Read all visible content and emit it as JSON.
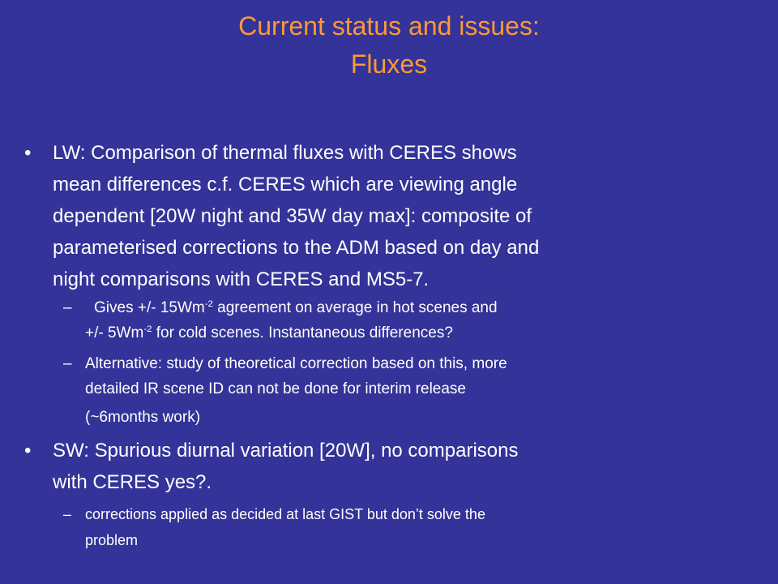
{
  "title": [
    "Current status and issues:",
    "Fluxes"
  ],
  "bullets": [
    {
      "marker": "•",
      "lines": [
        "LW: Comparison of thermal fluxes with CERES shows",
        "mean differences c.f. CERES which are viewing angle",
        "dependent [20W night and 35W day max]: composite of",
        "parameterised corrections to the ADM based on day and",
        "night comparisons with CERES and MS5-7."
      ],
      "subitems": [
        {
          "marker": "–",
          "lines": [
            [
              {
                "text": "Gives +/- 15Wm"
              },
              {
                "sup": "-2"
              },
              {
                "text": " agreement on average in hot scenes and"
              }
            ],
            [
              {
                "text": "+/- 5Wm"
              },
              {
                "sup": "-2"
              },
              {
                "text": " for cold scenes. Instantaneous differences?"
              }
            ]
          ]
        },
        {
          "marker": "–",
          "lines": [
            [
              {
                "text": "Alternative: study of theoretical correction based on this, more"
              }
            ],
            [
              {
                "text": "detailed IR scene ID can not be done for interim release"
              }
            ],
            [
              {
                "text": "(~6months work)"
              }
            ]
          ]
        }
      ]
    },
    {
      "marker": "•",
      "lines": [
        "SW: Spurious diurnal variation [20W], no comparisons",
        "with CERES yes?."
      ],
      "subitems": [
        {
          "marker": "–",
          "lines": [
            [
              {
                "text": "corrections applied as decided at last GIST but don’t solve the"
              }
            ],
            [
              {
                "text": "problem"
              }
            ]
          ]
        }
      ]
    }
  ]
}
